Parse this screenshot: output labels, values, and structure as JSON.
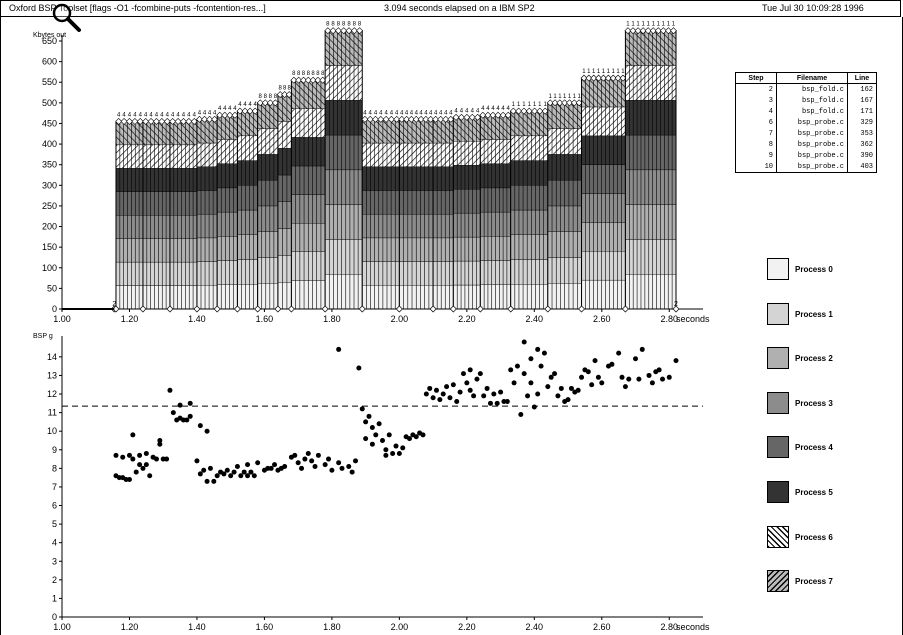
{
  "header": {
    "title": "Oxford BSP Toolset [flags -O1 -fcombine-puts -fcontention-res...]",
    "elapsed": "3.094 seconds elapsed on a IBM SP2",
    "date": "Tue Jul 30 10:09:28 1996"
  },
  "icons": {
    "zoom": "magnifier-icon"
  },
  "table": {
    "headers": [
      "Step",
      "Filename",
      "Line"
    ],
    "rows": [
      {
        "step": "2",
        "file": "bsp_fold.c",
        "line": "162"
      },
      {
        "step": "3",
        "file": "bsp_fold.c",
        "line": "167"
      },
      {
        "step": "4",
        "file": "bsp_fold.c",
        "line": "171"
      },
      {
        "step": "6",
        "file": "bsp_probe.c",
        "line": "329"
      },
      {
        "step": "7",
        "file": "bsp_probe.c",
        "line": "353"
      },
      {
        "step": "8",
        "file": "bsp_probe.c",
        "line": "362"
      },
      {
        "step": "9",
        "file": "bsp_probe.c",
        "line": "390"
      },
      {
        "step": "10",
        "file": "bsp_probe.c",
        "line": "403"
      }
    ]
  },
  "legend": [
    {
      "label": "Process 0",
      "fill": "#f2f2f2",
      "hatch": false
    },
    {
      "label": "Process 1",
      "fill": "#d4d4d4",
      "hatch": false
    },
    {
      "label": "Process 2",
      "fill": "#b0b0b0",
      "hatch": false
    },
    {
      "label": "Process 3",
      "fill": "#8c8c8c",
      "hatch": false
    },
    {
      "label": "Process 4",
      "fill": "#666666",
      "hatch": false
    },
    {
      "label": "Process 5",
      "fill": "#333333",
      "hatch": false
    },
    {
      "label": "Process 6",
      "fill": "#ffffff",
      "hatch": true
    },
    {
      "label": "Process 7",
      "fill": "#bbbbbb",
      "hatch": true
    }
  ],
  "chart_data": [
    {
      "type": "bar",
      "ylabel": "Kbytes out",
      "xlabel": "seconds",
      "ylim": [
        0,
        650
      ],
      "yticks": [
        "0",
        "50",
        "100",
        "150",
        "200",
        "250",
        "300",
        "350",
        "400",
        "450",
        "500",
        "550",
        "600",
        "650"
      ],
      "xlim": [
        1.0,
        2.9
      ],
      "xticks": [
        "1.00",
        "1.20",
        "1.40",
        "1.60",
        "1.80",
        "2.00",
        "2.20",
        "2.40",
        "2.60",
        "2.80"
      ],
      "supersteps": [
        {
          "start": 1.155,
          "end": 1.16,
          "value": 0,
          "label": "2"
        },
        {
          "start": 1.16,
          "end": 1.24,
          "value": 455,
          "label": "4"
        },
        {
          "start": 1.24,
          "end": 1.32,
          "value": 455,
          "label": "4"
        },
        {
          "start": 1.32,
          "end": 1.4,
          "value": 455,
          "label": "4"
        },
        {
          "start": 1.4,
          "end": 1.46,
          "value": 460,
          "label": "4"
        },
        {
          "start": 1.46,
          "end": 1.52,
          "value": 470,
          "label": "4"
        },
        {
          "start": 1.52,
          "end": 1.58,
          "value": 480,
          "label": "4"
        },
        {
          "start": 1.58,
          "end": 1.64,
          "value": 500,
          "label": "8"
        },
        {
          "start": 1.64,
          "end": 1.68,
          "value": 520,
          "label": "8"
        },
        {
          "start": 1.68,
          "end": 1.78,
          "value": 555,
          "label": "8"
        },
        {
          "start": 1.78,
          "end": 1.89,
          "value": 675,
          "label": "8"
        },
        {
          "start": 1.89,
          "end": 2.0,
          "value": 460,
          "label": "4"
        },
        {
          "start": 2.0,
          "end": 2.1,
          "value": 460,
          "label": "4"
        },
        {
          "start": 2.1,
          "end": 2.16,
          "value": 460,
          "label": "4"
        },
        {
          "start": 2.16,
          "end": 2.24,
          "value": 465,
          "label": "4"
        },
        {
          "start": 2.24,
          "end": 2.33,
          "value": 470,
          "label": "4"
        },
        {
          "start": 2.33,
          "end": 2.44,
          "value": 480,
          "label": "1"
        },
        {
          "start": 2.44,
          "end": 2.54,
          "value": 500,
          "label": "1"
        },
        {
          "start": 2.54,
          "end": 2.67,
          "value": 560,
          "label": "1"
        },
        {
          "start": 2.67,
          "end": 2.82,
          "value": 675,
          "label": "1"
        },
        {
          "start": 2.82,
          "end": 2.825,
          "value": 0,
          "label": "2"
        }
      ]
    },
    {
      "type": "scatter",
      "ylabel": "BSP g",
      "xlabel": "seconds",
      "ylim": [
        0,
        14.8
      ],
      "yticks": [
        "0",
        "1",
        "2",
        "3",
        "4",
        "5",
        "6",
        "7",
        "8",
        "9",
        "10",
        "11",
        "12",
        "13",
        "14"
      ],
      "xlim": [
        1.0,
        2.9
      ],
      "xticks": [
        "1.00",
        "1.20",
        "1.40",
        "1.60",
        "1.80",
        "2.00",
        "2.20",
        "2.40",
        "2.60",
        "2.80"
      ],
      "reference_line": 11.35,
      "points": [
        [
          1.16,
          8.7
        ],
        [
          1.16,
          7.6
        ],
        [
          1.17,
          7.5
        ],
        [
          1.18,
          8.6
        ],
        [
          1.18,
          7.5
        ],
        [
          1.19,
          7.4
        ],
        [
          1.2,
          8.7
        ],
        [
          1.2,
          7.4
        ],
        [
          1.21,
          9.8
        ],
        [
          1.21,
          8.5
        ],
        [
          1.22,
          7.8
        ],
        [
          1.23,
          8.7
        ],
        [
          1.23,
          8.2
        ],
        [
          1.24,
          8.0
        ],
        [
          1.25,
          8.8
        ],
        [
          1.25,
          8.2
        ],
        [
          1.26,
          7.6
        ],
        [
          1.27,
          8.6
        ],
        [
          1.28,
          8.5
        ],
        [
          1.29,
          9.5
        ],
        [
          1.29,
          9.3
        ],
        [
          1.3,
          8.5
        ],
        [
          1.31,
          8.5
        ],
        [
          1.32,
          12.2
        ],
        [
          1.33,
          11.0
        ],
        [
          1.34,
          10.6
        ],
        [
          1.35,
          11.4
        ],
        [
          1.35,
          10.7
        ],
        [
          1.36,
          10.6
        ],
        [
          1.37,
          10.6
        ],
        [
          1.38,
          11.5
        ],
        [
          1.38,
          10.8
        ],
        [
          1.41,
          10.3
        ],
        [
          1.43,
          10.0
        ],
        [
          1.4,
          8.4
        ],
        [
          1.41,
          7.7
        ],
        [
          1.42,
          7.9
        ],
        [
          1.43,
          7.3
        ],
        [
          1.44,
          8.0
        ],
        [
          1.45,
          7.3
        ],
        [
          1.46,
          7.6
        ],
        [
          1.47,
          7.8
        ],
        [
          1.48,
          7.7
        ],
        [
          1.49,
          7.9
        ],
        [
          1.5,
          7.6
        ],
        [
          1.51,
          7.8
        ],
        [
          1.52,
          8.1
        ],
        [
          1.53,
          7.6
        ],
        [
          1.54,
          7.8
        ],
        [
          1.55,
          8.2
        ],
        [
          1.55,
          7.6
        ],
        [
          1.56,
          7.8
        ],
        [
          1.57,
          7.6
        ],
        [
          1.58,
          8.3
        ],
        [
          1.6,
          7.9
        ],
        [
          1.61,
          8.0
        ],
        [
          1.62,
          8.0
        ],
        [
          1.63,
          8.2
        ],
        [
          1.64,
          7.9
        ],
        [
          1.65,
          8.0
        ],
        [
          1.66,
          8.1
        ],
        [
          1.68,
          8.6
        ],
        [
          1.69,
          8.7
        ],
        [
          1.7,
          8.3
        ],
        [
          1.71,
          8.0
        ],
        [
          1.72,
          8.5
        ],
        [
          1.73,
          8.8
        ],
        [
          1.74,
          8.4
        ],
        [
          1.75,
          8.1
        ],
        [
          1.76,
          8.7
        ],
        [
          1.78,
          8.2
        ],
        [
          1.79,
          8.5
        ],
        [
          1.8,
          7.9
        ],
        [
          1.82,
          8.3
        ],
        [
          1.83,
          8.0
        ],
        [
          1.85,
          8.1
        ],
        [
          1.86,
          7.8
        ],
        [
          1.87,
          8.4
        ],
        [
          1.82,
          14.4
        ],
        [
          1.88,
          13.4
        ],
        [
          1.89,
          11.2
        ],
        [
          1.9,
          10.5
        ],
        [
          1.9,
          9.6
        ],
        [
          1.91,
          10.8
        ],
        [
          1.92,
          9.3
        ],
        [
          1.92,
          10.2
        ],
        [
          1.93,
          9.8
        ],
        [
          1.94,
          10.4
        ],
        [
          1.95,
          9.5
        ],
        [
          1.96,
          9.0
        ],
        [
          1.96,
          8.7
        ],
        [
          1.97,
          9.8
        ],
        [
          1.98,
          8.8
        ],
        [
          1.99,
          9.2
        ],
        [
          2.0,
          8.8
        ],
        [
          2.01,
          9.1
        ],
        [
          2.02,
          9.7
        ],
        [
          2.03,
          9.6
        ],
        [
          2.04,
          9.8
        ],
        [
          2.05,
          9.7
        ],
        [
          2.06,
          9.9
        ],
        [
          2.07,
          9.8
        ],
        [
          2.08,
          12.0
        ],
        [
          2.09,
          12.3
        ],
        [
          2.1,
          11.8
        ],
        [
          2.11,
          12.2
        ],
        [
          2.12,
          11.7
        ],
        [
          2.13,
          12.0
        ],
        [
          2.14,
          12.4
        ],
        [
          2.15,
          11.8
        ],
        [
          2.16,
          12.5
        ],
        [
          2.17,
          11.6
        ],
        [
          2.18,
          12.1
        ],
        [
          2.19,
          13.1
        ],
        [
          2.2,
          12.6
        ],
        [
          2.21,
          13.3
        ],
        [
          2.21,
          12.2
        ],
        [
          2.22,
          11.9
        ],
        [
          2.23,
          12.8
        ],
        [
          2.24,
          13.1
        ],
        [
          2.25,
          11.9
        ],
        [
          2.26,
          12.3
        ],
        [
          2.27,
          11.5
        ],
        [
          2.28,
          12.0
        ],
        [
          2.29,
          11.5
        ],
        [
          2.3,
          12.1
        ],
        [
          2.31,
          11.6
        ],
        [
          2.32,
          11.6
        ],
        [
          2.33,
          13.3
        ],
        [
          2.34,
          12.6
        ],
        [
          2.35,
          13.5
        ],
        [
          2.36,
          10.9
        ],
        [
          2.37,
          14.8
        ],
        [
          2.37,
          13.1
        ],
        [
          2.38,
          11.9
        ],
        [
          2.39,
          13.9
        ],
        [
          2.39,
          12.6
        ],
        [
          2.4,
          11.3
        ],
        [
          2.41,
          14.4
        ],
        [
          2.41,
          12.0
        ],
        [
          2.42,
          13.5
        ],
        [
          2.43,
          14.2
        ],
        [
          2.44,
          12.4
        ],
        [
          2.45,
          12.9
        ],
        [
          2.46,
          13.1
        ],
        [
          2.47,
          11.9
        ],
        [
          2.48,
          12.3
        ],
        [
          2.49,
          11.6
        ],
        [
          2.5,
          11.7
        ],
        [
          2.51,
          12.3
        ],
        [
          2.52,
          12.1
        ],
        [
          2.53,
          12.2
        ],
        [
          2.54,
          12.9
        ],
        [
          2.55,
          13.3
        ],
        [
          2.56,
          13.2
        ],
        [
          2.57,
          12.5
        ],
        [
          2.58,
          13.8
        ],
        [
          2.59,
          12.9
        ],
        [
          2.6,
          12.6
        ],
        [
          2.62,
          13.5
        ],
        [
          2.63,
          13.6
        ],
        [
          2.65,
          14.2
        ],
        [
          2.66,
          12.9
        ],
        [
          2.67,
          12.4
        ],
        [
          2.68,
          12.8
        ],
        [
          2.7,
          13.9
        ],
        [
          2.71,
          12.8
        ],
        [
          2.72,
          14.4
        ],
        [
          2.74,
          13.0
        ],
        [
          2.75,
          12.6
        ],
        [
          2.76,
          13.2
        ],
        [
          2.77,
          13.3
        ],
        [
          2.78,
          12.8
        ],
        [
          2.8,
          12.9
        ],
        [
          2.82,
          13.8
        ]
      ]
    }
  ]
}
